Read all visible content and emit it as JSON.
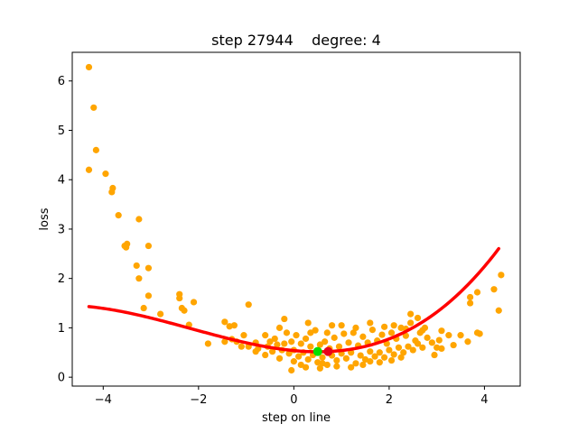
{
  "chart_data": {
    "type": "scatter",
    "title": "step 27944    degree: 4",
    "xlabel": "step on line",
    "ylabel": "loss",
    "xlim": [
      -4.65,
      4.75
    ],
    "ylim": [
      -0.18,
      6.58
    ],
    "xticks": [
      -4,
      -2,
      0,
      2,
      4
    ],
    "xtick_labels": [
      "−4",
      "−2",
      "0",
      "2",
      "4"
    ],
    "yticks": [
      0,
      1,
      2,
      3,
      4,
      5,
      6
    ],
    "ytick_labels": [
      "0",
      "1",
      "2",
      "3",
      "4",
      "5",
      "6"
    ],
    "grid": false,
    "colors": {
      "points": "#ffa500",
      "fit": "#ff0000",
      "fit_min": "#e8001a",
      "current": "#00e000"
    },
    "series": [
      {
        "kind": "scatter",
        "points": [
          [
            -4.3,
            6.28
          ],
          [
            -4.2,
            5.46
          ],
          [
            -4.3,
            4.2
          ],
          [
            -4.15,
            4.6
          ],
          [
            -3.95,
            4.12
          ],
          [
            -3.8,
            3.83
          ],
          [
            -3.82,
            3.75
          ],
          [
            -3.68,
            3.28
          ],
          [
            -3.55,
            2.66
          ],
          [
            -3.5,
            2.7
          ],
          [
            -3.52,
            2.63
          ],
          [
            -3.25,
            3.2
          ],
          [
            -3.05,
            2.66
          ],
          [
            -3.05,
            2.21
          ],
          [
            -3.3,
            2.26
          ],
          [
            -3.25,
            2.0
          ],
          [
            -3.15,
            1.4
          ],
          [
            -3.05,
            1.65
          ],
          [
            -2.8,
            1.28
          ],
          [
            -2.4,
            1.68
          ],
          [
            -2.4,
            1.6
          ],
          [
            -2.35,
            1.4
          ],
          [
            -2.3,
            1.35
          ],
          [
            -2.1,
            1.52
          ],
          [
            -2.2,
            1.06
          ],
          [
            -1.8,
            0.68
          ],
          [
            -1.45,
            1.12
          ],
          [
            -1.35,
            1.03
          ],
          [
            -1.25,
            1.05
          ],
          [
            -1.45,
            0.72
          ],
          [
            -1.3,
            0.77
          ],
          [
            -1.05,
            0.85
          ],
          [
            -0.95,
            1.47
          ],
          [
            -0.95,
            0.62
          ],
          [
            -0.8,
            0.7
          ],
          [
            -0.75,
            0.58
          ],
          [
            -0.6,
            0.85
          ],
          [
            -0.55,
            0.62
          ],
          [
            -0.5,
            0.72
          ],
          [
            -0.45,
            0.52
          ],
          [
            -0.4,
            0.78
          ],
          [
            -0.35,
            0.66
          ],
          [
            -0.3,
            1.0
          ],
          [
            -0.25,
            0.55
          ],
          [
            -0.2,
            0.68
          ],
          [
            -0.15,
            0.9
          ],
          [
            -0.1,
            0.48
          ],
          [
            -0.05,
            0.72
          ],
          [
            0.0,
            0.55
          ],
          [
            0.05,
            0.85
          ],
          [
            0.1,
            0.42
          ],
          [
            0.15,
            0.68
          ],
          [
            0.2,
            0.5
          ],
          [
            0.25,
            0.78
          ],
          [
            0.3,
            0.36
          ],
          [
            0.35,
            0.62
          ],
          [
            0.4,
            0.45
          ],
          [
            0.45,
            0.95
          ],
          [
            0.5,
            0.3
          ],
          [
            0.55,
            0.66
          ],
          [
            0.6,
            0.4
          ],
          [
            0.65,
            0.72
          ],
          [
            0.7,
            0.25
          ],
          [
            0.75,
            0.58
          ],
          [
            0.8,
            0.44
          ],
          [
            0.85,
            0.8
          ],
          [
            0.9,
            0.34
          ],
          [
            0.95,
            0.62
          ],
          [
            1.0,
            0.48
          ],
          [
            1.05,
            0.88
          ],
          [
            1.1,
            0.38
          ],
          [
            1.15,
            0.7
          ],
          [
            1.2,
            0.5
          ],
          [
            1.25,
            0.9
          ],
          [
            1.3,
            0.28
          ],
          [
            1.35,
            0.64
          ],
          [
            1.4,
            0.44
          ],
          [
            1.45,
            0.82
          ],
          [
            1.5,
            0.36
          ],
          [
            1.55,
            0.7
          ],
          [
            1.6,
            0.52
          ],
          [
            1.65,
            0.96
          ],
          [
            1.7,
            0.42
          ],
          [
            1.75,
            0.74
          ],
          [
            1.8,
            0.5
          ],
          [
            1.85,
            0.86
          ],
          [
            1.9,
            0.4
          ],
          [
            1.95,
            0.68
          ],
          [
            2.0,
            0.55
          ],
          [
            2.05,
            0.9
          ],
          [
            2.1,
            0.46
          ],
          [
            2.15,
            0.78
          ],
          [
            2.2,
            0.6
          ],
          [
            2.25,
            1.0
          ],
          [
            2.3,
            0.5
          ],
          [
            2.35,
            0.84
          ],
          [
            2.4,
            0.62
          ],
          [
            2.45,
            1.1
          ],
          [
            2.5,
            0.55
          ],
          [
            2.55,
            0.74
          ],
          [
            2.6,
            0.68
          ],
          [
            2.65,
            0.9
          ],
          [
            2.7,
            0.6
          ],
          [
            2.8,
            0.8
          ],
          [
            2.9,
            0.7
          ],
          [
            2.95,
            0.45
          ],
          [
            3.0,
            0.6
          ],
          [
            3.05,
            0.75
          ],
          [
            3.1,
            0.58
          ],
          [
            2.6,
            1.2
          ],
          [
            2.7,
            0.95
          ],
          [
            2.45,
            1.28
          ],
          [
            2.1,
            1.05
          ],
          [
            1.6,
            1.1
          ],
          [
            1.0,
            1.05
          ],
          [
            0.8,
            1.05
          ],
          [
            0.3,
            1.1
          ],
          [
            -0.2,
            1.18
          ],
          [
            3.25,
            0.85
          ],
          [
            3.35,
            0.65
          ],
          [
            3.5,
            0.85
          ],
          [
            3.65,
            0.72
          ],
          [
            3.7,
            1.62
          ],
          [
            3.7,
            1.5
          ],
          [
            3.85,
            1.72
          ],
          [
            3.85,
            0.9
          ],
          [
            4.2,
            1.78
          ],
          [
            4.3,
            1.35
          ],
          [
            4.35,
            2.07
          ],
          [
            3.9,
            0.88
          ],
          [
            -0.6,
            0.45
          ],
          [
            -0.3,
            0.38
          ],
          [
            0.0,
            0.32
          ],
          [
            0.25,
            0.2
          ],
          [
            0.55,
            0.18
          ],
          [
            0.9,
            0.22
          ],
          [
            1.2,
            0.2
          ],
          [
            1.45,
            0.25
          ],
          [
            1.8,
            0.3
          ],
          [
            2.05,
            0.34
          ],
          [
            -0.05,
            0.14
          ],
          [
            1.6,
            0.32
          ],
          [
            2.25,
            0.4
          ],
          [
            0.15,
            0.25
          ],
          [
            0.6,
            0.28
          ],
          [
            -0.8,
            0.52
          ],
          [
            -1.1,
            0.62
          ],
          [
            -1.2,
            0.72
          ],
          [
            0.35,
            0.9
          ],
          [
            1.3,
            1.0
          ],
          [
            0.7,
            0.9
          ],
          [
            1.9,
            1.02
          ],
          [
            2.35,
            0.98
          ],
          [
            2.75,
            1.0
          ],
          [
            3.1,
            0.94
          ]
        ]
      },
      {
        "kind": "fit_curve",
        "polynomial_coefficients": [
          0.5394,
          -0.0908,
          0.0799,
          0.0123,
          0.0
        ],
        "x_range": [
          -4.3,
          4.3
        ]
      }
    ],
    "markers": {
      "fit_min": [
        0.72,
        0.52
      ],
      "current": [
        0.5,
        0.52
      ]
    }
  }
}
